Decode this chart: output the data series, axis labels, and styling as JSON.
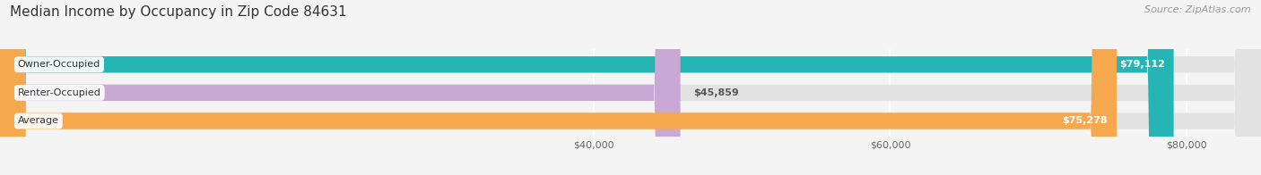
{
  "title": "Median Income by Occupancy in Zip Code 84631",
  "source": "Source: ZipAtlas.com",
  "categories": [
    "Owner-Occupied",
    "Renter-Occupied",
    "Average"
  ],
  "values": [
    79112,
    45859,
    75278
  ],
  "labels": [
    "$79,112",
    "$45,859",
    "$75,278"
  ],
  "bar_colors": [
    "#26b5b5",
    "#c9a8d4",
    "#f5a84e"
  ],
  "x_ticks": [
    40000,
    60000,
    80000
  ],
  "x_tick_labels": [
    "$40,000",
    "$60,000",
    "$80,000"
  ],
  "x_min": 0,
  "x_max": 85000,
  "background_color": "#f4f4f4",
  "bar_bg_color": "#e2e2e2",
  "title_fontsize": 11,
  "source_fontsize": 8,
  "value_fontsize": 8,
  "cat_fontsize": 8,
  "tick_fontsize": 8,
  "bar_height": 0.58,
  "inside_label_threshold": 60000
}
